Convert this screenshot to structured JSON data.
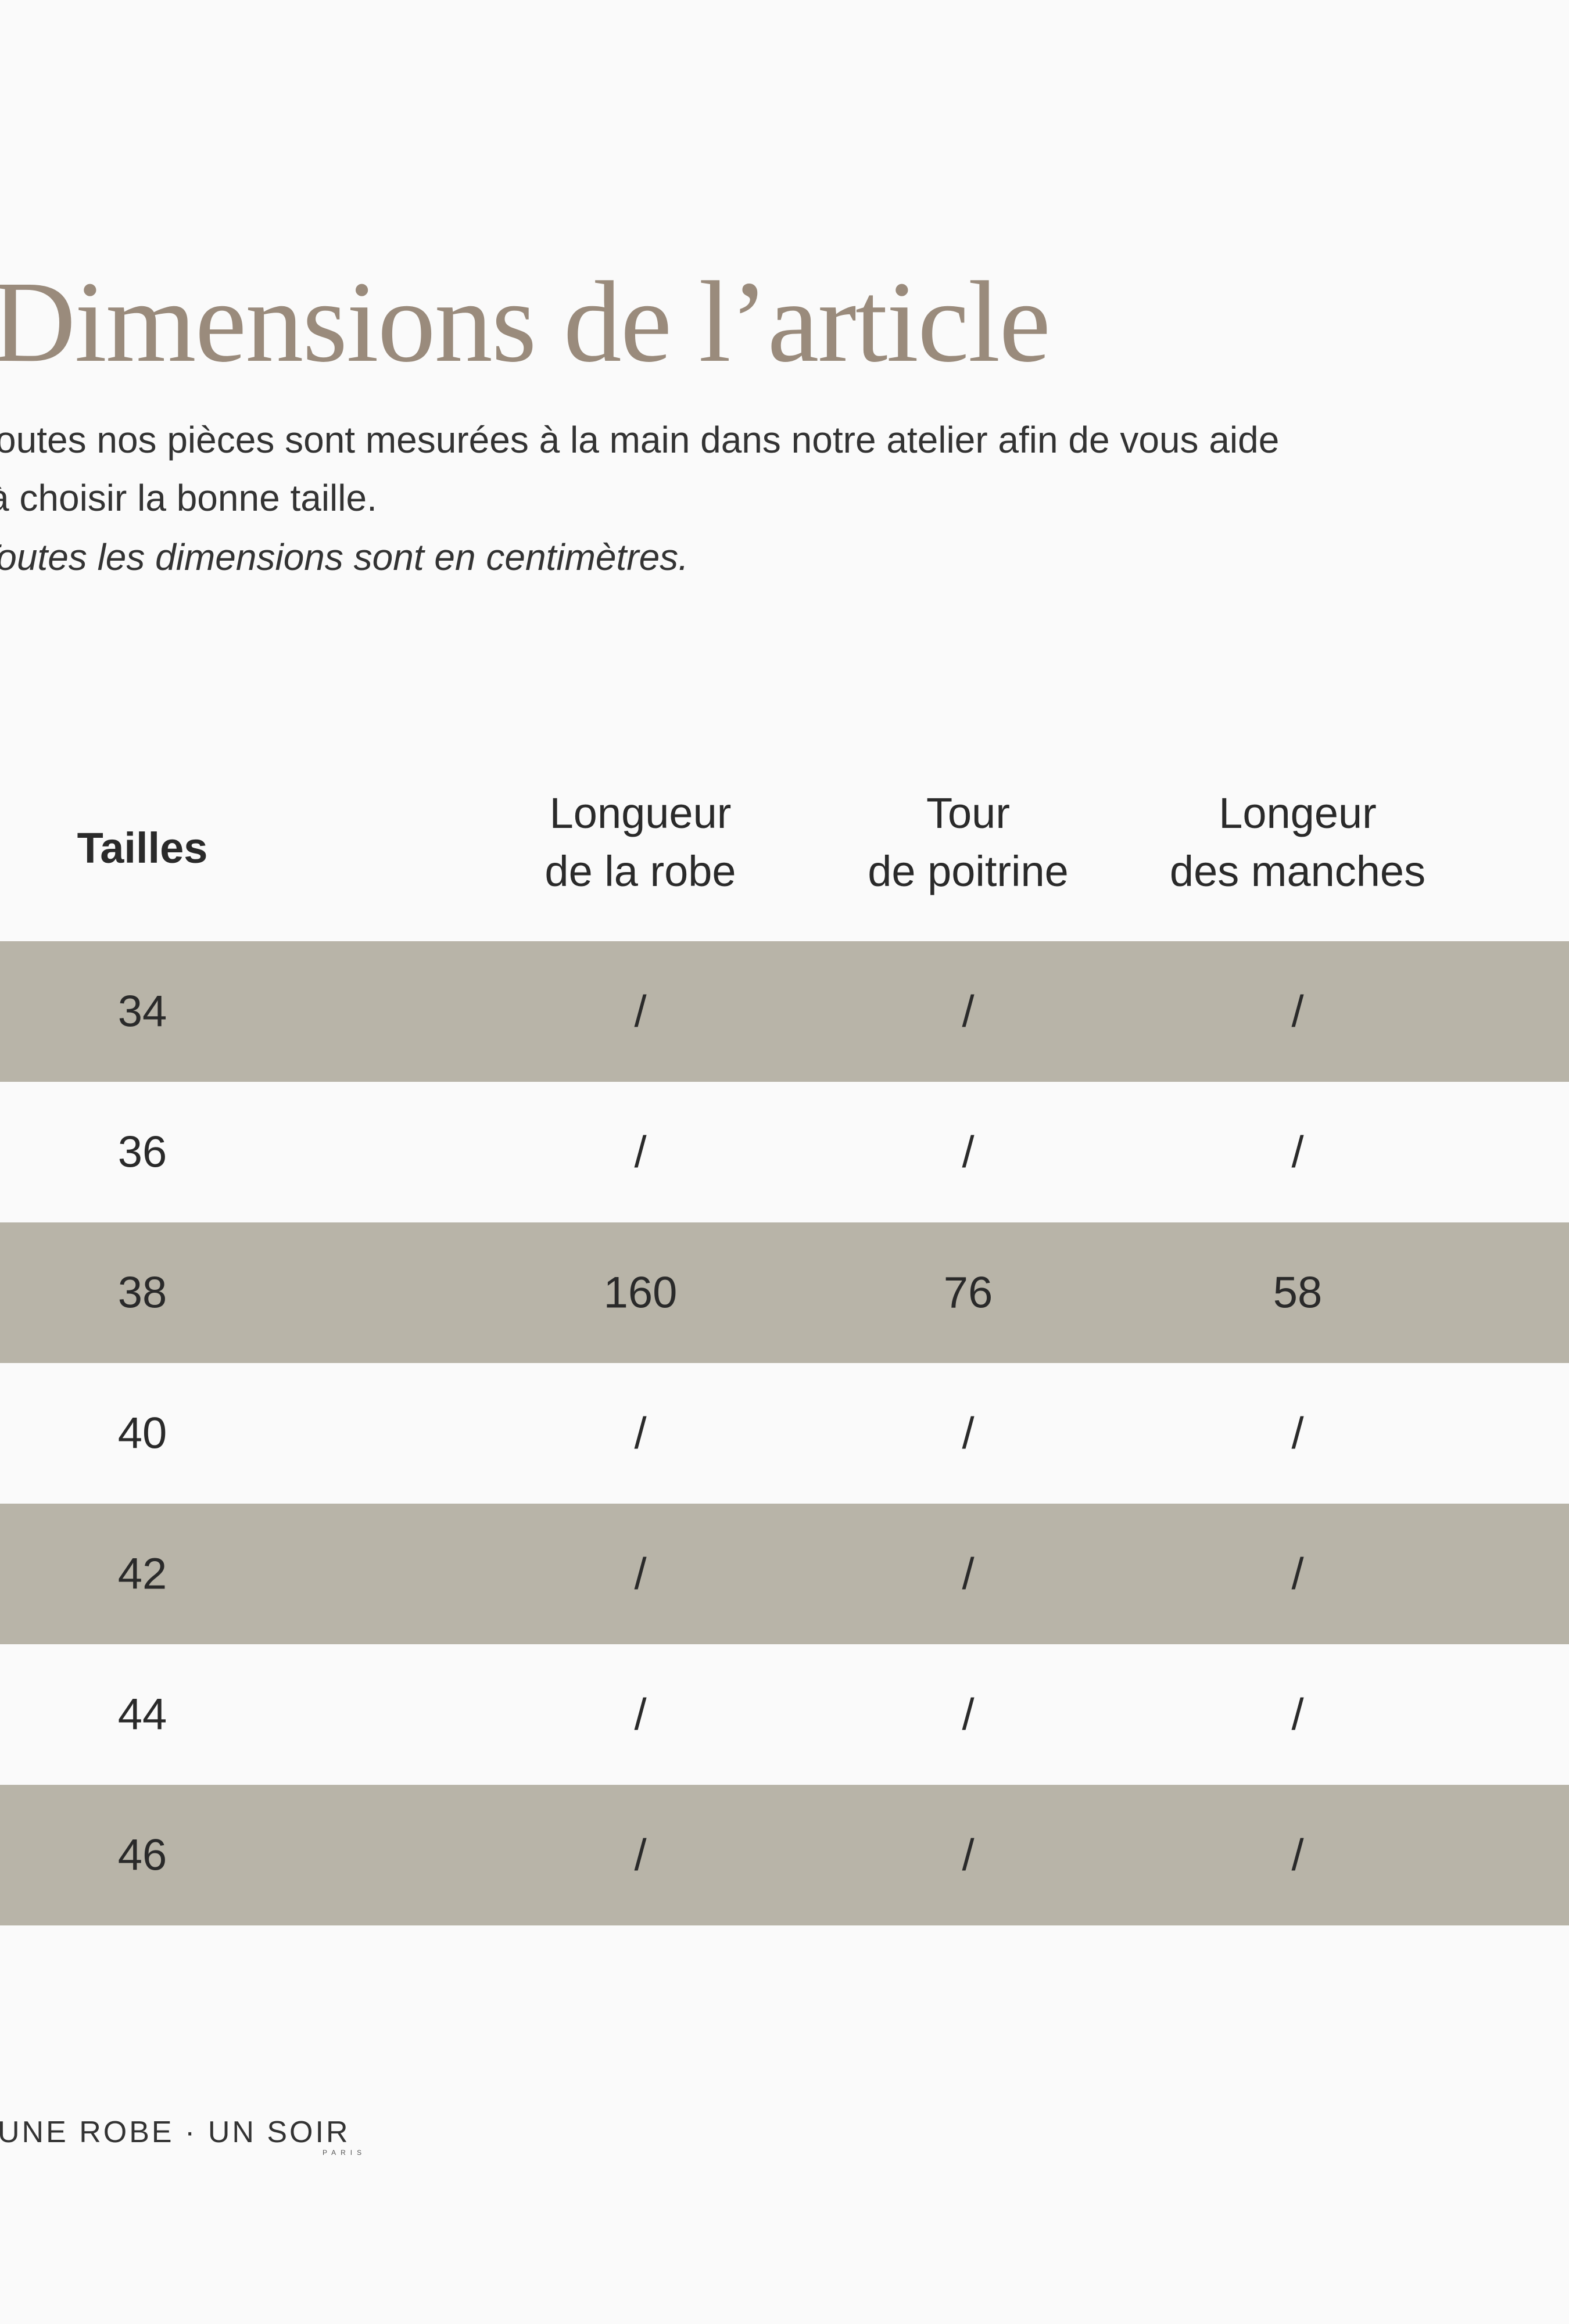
{
  "header": {
    "title": "Dimensions de l’article"
  },
  "intro": {
    "lines": [
      "outes nos pièces sont mesurées à la main dans notre atelier afin de vous aide",
      "à choisir la bonne taille.",
      "Toutes les dimensions sont en centimètres."
    ]
  },
  "table": {
    "columns": [
      [
        "Tailles"
      ],
      [
        "Longueur",
        "de la robe"
      ],
      [
        "Tour",
        "de poitrine"
      ],
      [
        "Longeur",
        "des manches"
      ]
    ],
    "rows": [
      [
        34,
        "/",
        "/",
        "/"
      ],
      [
        36,
        "/",
        "/",
        "/"
      ],
      [
        38,
        160,
        76,
        58
      ],
      [
        40,
        "/",
        "/",
        "/"
      ],
      [
        42,
        "/",
        "/",
        "/"
      ],
      [
        44,
        "/",
        "/",
        "/"
      ],
      [
        46,
        "/",
        "/",
        "/"
      ]
    ]
  },
  "footer": {
    "brand": "UNE ROBE · UN SOIR",
    "sub": "PARIS"
  }
}
